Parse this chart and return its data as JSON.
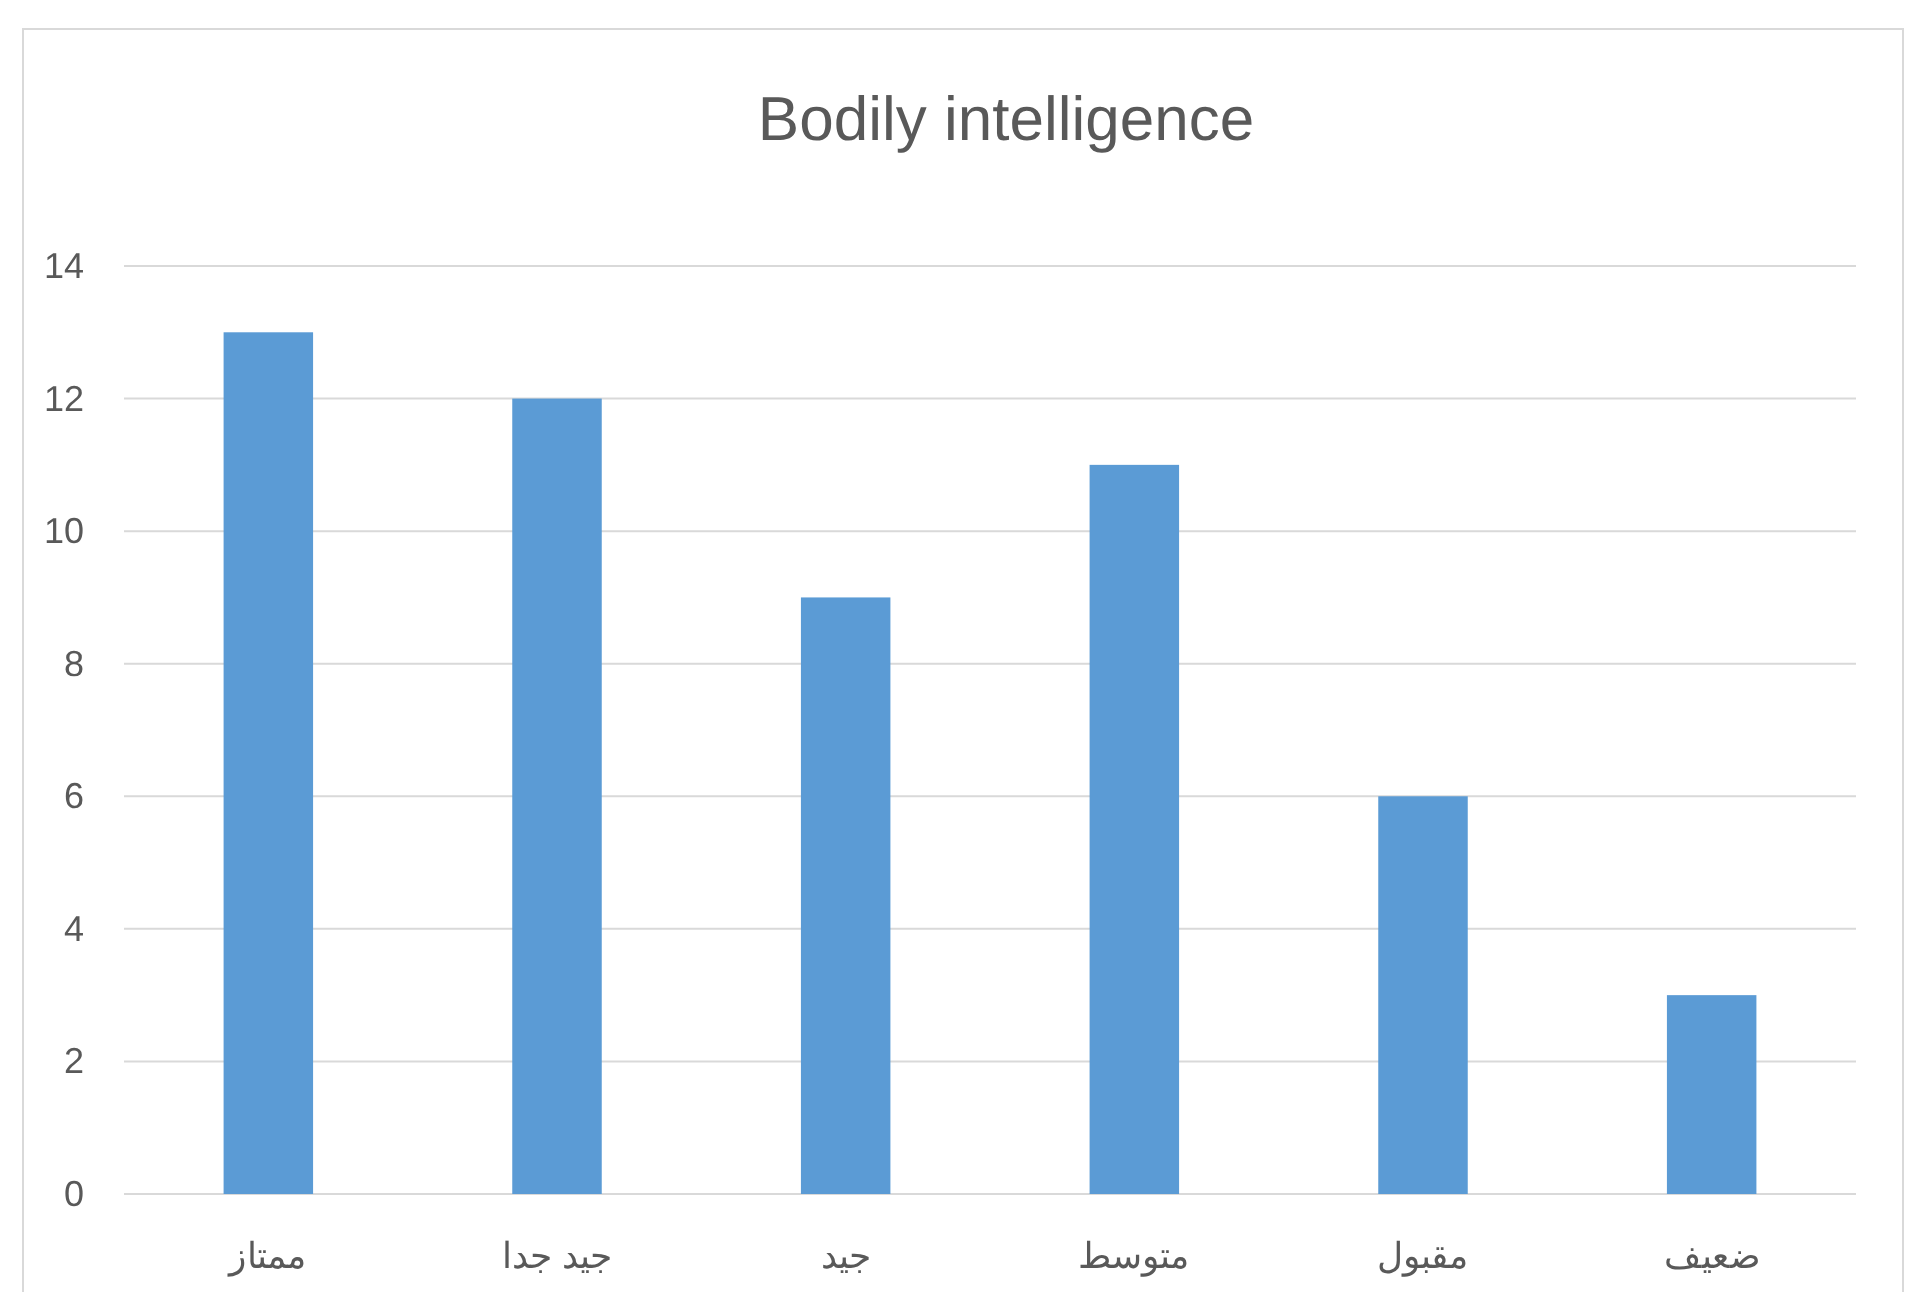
{
  "chart_data": {
    "type": "bar",
    "title": "Bodily intelligence",
    "categories": [
      "ممتاز",
      "جيد جدا",
      "جيد",
      "متوسط",
      "مقبول",
      "ضعيف"
    ],
    "values": [
      13,
      12,
      9,
      11,
      6,
      3
    ],
    "color": "#5b9bd5",
    "ylim": [
      0,
      14
    ],
    "yticks": [
      0,
      2,
      4,
      6,
      8,
      10,
      12,
      14
    ],
    "grid": "y"
  }
}
